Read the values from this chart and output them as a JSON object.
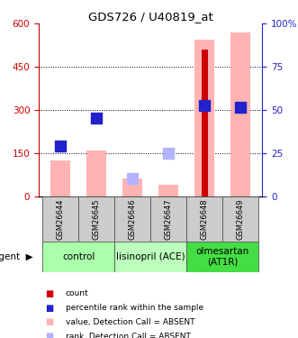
{
  "title": "GDS726 / U40819_at",
  "samples": [
    "GSM26644",
    "GSM26645",
    "GSM26646",
    "GSM26647",
    "GSM26648",
    "GSM26649"
  ],
  "groups": [
    {
      "label": "control",
      "color": "#aaffaa",
      "cols": [
        0,
        1
      ]
    },
    {
      "label": "lisinopril (ACE)",
      "color": "#bbffbb",
      "cols": [
        2,
        3
      ]
    },
    {
      "label": "olmesartan\n(AT1R)",
      "color": "#44dd44",
      "cols": [
        4,
        5
      ]
    }
  ],
  "ylim_left": [
    0,
    600
  ],
  "ylim_right": [
    0,
    100
  ],
  "yticks_left": [
    0,
    150,
    300,
    450,
    600
  ],
  "yticks_right": [
    0,
    25,
    50,
    75,
    100
  ],
  "ytick_labels_right": [
    "0",
    "25",
    "50",
    "75",
    "100%"
  ],
  "red_bars": [
    null,
    null,
    null,
    null,
    510,
    null
  ],
  "pink_bars": [
    125,
    160,
    62,
    38,
    545,
    570
  ],
  "blue_dots_y": [
    175,
    270,
    null,
    null,
    315,
    310
  ],
  "lavender_dots_y": [
    null,
    null,
    62,
    150,
    null,
    null
  ],
  "legend": [
    {
      "color": "#cc0000",
      "label": "count"
    },
    {
      "color": "#2222cc",
      "label": "percentile rank within the sample"
    },
    {
      "color": "#ffb3b3",
      "label": "value, Detection Call = ABSENT"
    },
    {
      "color": "#b3b3ff",
      "label": "rank, Detection Call = ABSENT"
    }
  ],
  "left_ycolor": "#cc0000",
  "right_ycolor": "#2222cc",
  "pink_bar_width": 0.55,
  "red_bar_width": 0.18,
  "dot_size": 70
}
